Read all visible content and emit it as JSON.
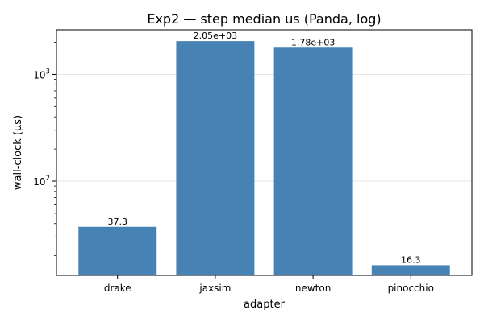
{
  "chart_data": {
    "type": "bar",
    "title": "Exp2 — step median us (Panda, log)",
    "xlabel": "adapter",
    "ylabel": "wall-clock (µs)",
    "yscale": "log",
    "ylim": [
      13.1,
      2620
    ],
    "grid": "y-major",
    "categories": [
      "drake",
      "jaxsim",
      "newton",
      "pinocchio"
    ],
    "values": [
      37.3,
      2050,
      1780,
      16.3
    ],
    "data_labels": [
      "37.3",
      "2.05e+03",
      "1.78e+03",
      "16.3"
    ],
    "major_ticks": [
      {
        "value": 100,
        "base": "10",
        "exp": "2"
      },
      {
        "value": 1000,
        "base": "10",
        "exp": "3"
      }
    ],
    "minor_ticks": [
      20,
      30,
      40,
      50,
      60,
      70,
      80,
      90,
      200,
      300,
      400,
      500,
      600,
      700,
      800,
      900,
      2000
    ],
    "bar_color": "#4682b4"
  }
}
